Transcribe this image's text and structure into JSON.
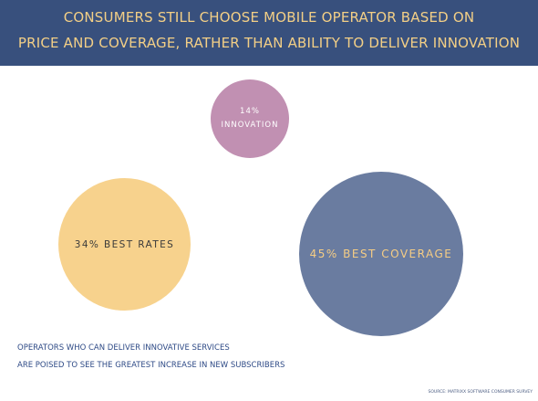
{
  "header": {
    "title_line1": "CONSUMERS STILL CHOOSE MOBILE OPERATOR BASED ON",
    "title_line2": "PRICE AND COVERAGE, RATHER THAN ABILITY TO DELIVER INNOVATION"
  },
  "colors": {
    "header_bg": "#38507d",
    "title_text": "#f3cf86",
    "innovation": "#c190b2",
    "best_rates": "#f7d28d",
    "best_coverage": "#6a7ca0",
    "footnote_text": "#2e4a86"
  },
  "chart_data": {
    "type": "bubble",
    "title": "CONSUMERS STILL CHOOSE MOBILE OPERATOR BASED ON PRICE AND COVERAGE, RATHER THAN ABILITY TO DELIVER INNOVATION",
    "items": [
      {
        "label_value": "14%",
        "label_text": "INNOVATION",
        "value": 14
      },
      {
        "label_value": "34%",
        "label_text": "BEST RATES",
        "value": 34
      },
      {
        "label_value": "45%",
        "label_text": "BEST COVERAGE",
        "value": 45
      }
    ]
  },
  "bubbles": {
    "innovation": {
      "value": "14%",
      "label": "INNOVATION"
    },
    "rates": {
      "label": "34% BEST RATES"
    },
    "coverage": {
      "label": "45% BEST COVERAGE"
    }
  },
  "footnote": {
    "line1": "OPERATORS WHO CAN DELIVER INNOVATIVE SERVICES",
    "line2": "ARE POISED TO SEE THE GREATEST INCREASE IN NEW SUBSCRIBERS"
  },
  "source": "SOURCE: MATRIXX SOFTWARE CONSUMER SURVEY"
}
